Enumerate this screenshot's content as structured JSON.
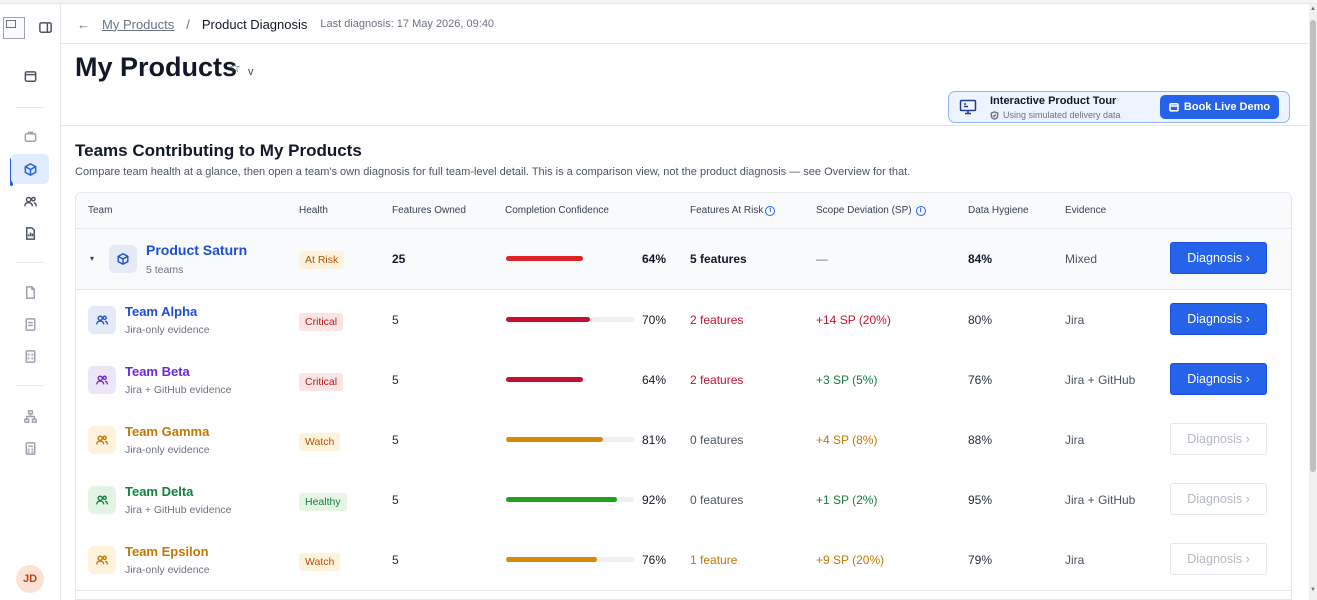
{
  "breadcrumb": {
    "back": "←",
    "parent": "My Products",
    "separator": "/",
    "current": "Product Diagnosis",
    "meta": "Last diagnosis: 17 May 2026, 09:40"
  },
  "page": {
    "title": "My Products",
    "star": "☆",
    "caret": "v"
  },
  "tour": {
    "title": "Interactive Product Tour",
    "subtitle": "Using simulated delivery data",
    "button": "Book Live Demo"
  },
  "section": {
    "title": "Teams Contributing to My Products",
    "description": "Compare team health at a glance, then open a team's own diagnosis for full team-level detail. This is a comparison view, not the product diagnosis — see Overview for that."
  },
  "table": {
    "headers": {
      "team": "Team",
      "health": "Health",
      "features_owned": "Features Owned",
      "completion": "Completion Confidence",
      "at_risk": "Features At Risk",
      "scope": "Scope Deviation (SP)",
      "hygiene": "Data Hygiene",
      "evidence": "Evidence"
    },
    "info_glyph": "i",
    "expand_glyph": "▾",
    "rows": [
      {
        "name": "Product Saturn",
        "sub": "5 teams",
        "health": "At Risk",
        "features": "25",
        "confidence": 64,
        "confidence_label": "64%",
        "at_risk": "5 features",
        "scope": "—",
        "hygiene": "84%",
        "evidence": "Mixed",
        "button": "Diagnosis ›",
        "color": "#1d4ed8",
        "bar_color": "#dc2626"
      },
      {
        "name": "Team Alpha",
        "sub": "Jira-only evidence",
        "health": "Critical",
        "features": "5",
        "confidence": 70,
        "confidence_label": "70%",
        "at_risk": "2 features",
        "scope": "+14 SP (20%)",
        "hygiene": "80%",
        "evidence": "Jira",
        "button": "Diagnosis ›",
        "color": "#1d4ed8",
        "bar_color": "#c8102e"
      },
      {
        "name": "Team Beta",
        "sub": "Jira + GitHub evidence",
        "health": "Critical",
        "features": "5",
        "confidence": 64,
        "confidence_label": "64%",
        "at_risk": "2 features",
        "scope": "+3 SP (5%)",
        "hygiene": "76%",
        "evidence": "Jira + GitHub",
        "button": "Diagnosis ›",
        "color": "#6d28d9",
        "bar_color": "#c8102e"
      },
      {
        "name": "Team Gamma",
        "sub": "Jira-only evidence",
        "health": "Watch",
        "features": "5",
        "confidence": 81,
        "confidence_label": "81%",
        "at_risk": "0 features",
        "scope": "+4 SP (8%)",
        "hygiene": "88%",
        "evidence": "Jira",
        "button": "Diagnosis ›",
        "color": "#c27803",
        "bar_color": "#d58a0a"
      },
      {
        "name": "Team Delta",
        "sub": "Jira + GitHub evidence",
        "health": "Healthy",
        "features": "5",
        "confidence": 92,
        "confidence_label": "92%",
        "at_risk": "0 features",
        "scope": "+1 SP (2%)",
        "hygiene": "95%",
        "evidence": "Jira + GitHub",
        "button": "Diagnosis ›",
        "color": "#15803d",
        "bar_color": "#22a020"
      },
      {
        "name": "Team Epsilon",
        "sub": "Jira-only evidence",
        "health": "Watch",
        "features": "5",
        "confidence": 76,
        "confidence_label": "76%",
        "at_risk": "1 feature",
        "scope": "+9 SP (20%)",
        "hygiene": "79%",
        "evidence": "Jira",
        "button": "Diagnosis ›",
        "color": "#c27803",
        "bar_color": "#d58a0a"
      }
    ]
  },
  "user": {
    "initials": "JD"
  },
  "colors": {
    "accent": "#2563eb",
    "critical": "#c8102e",
    "positive": "#15803d",
    "warning": "#c27803"
  }
}
